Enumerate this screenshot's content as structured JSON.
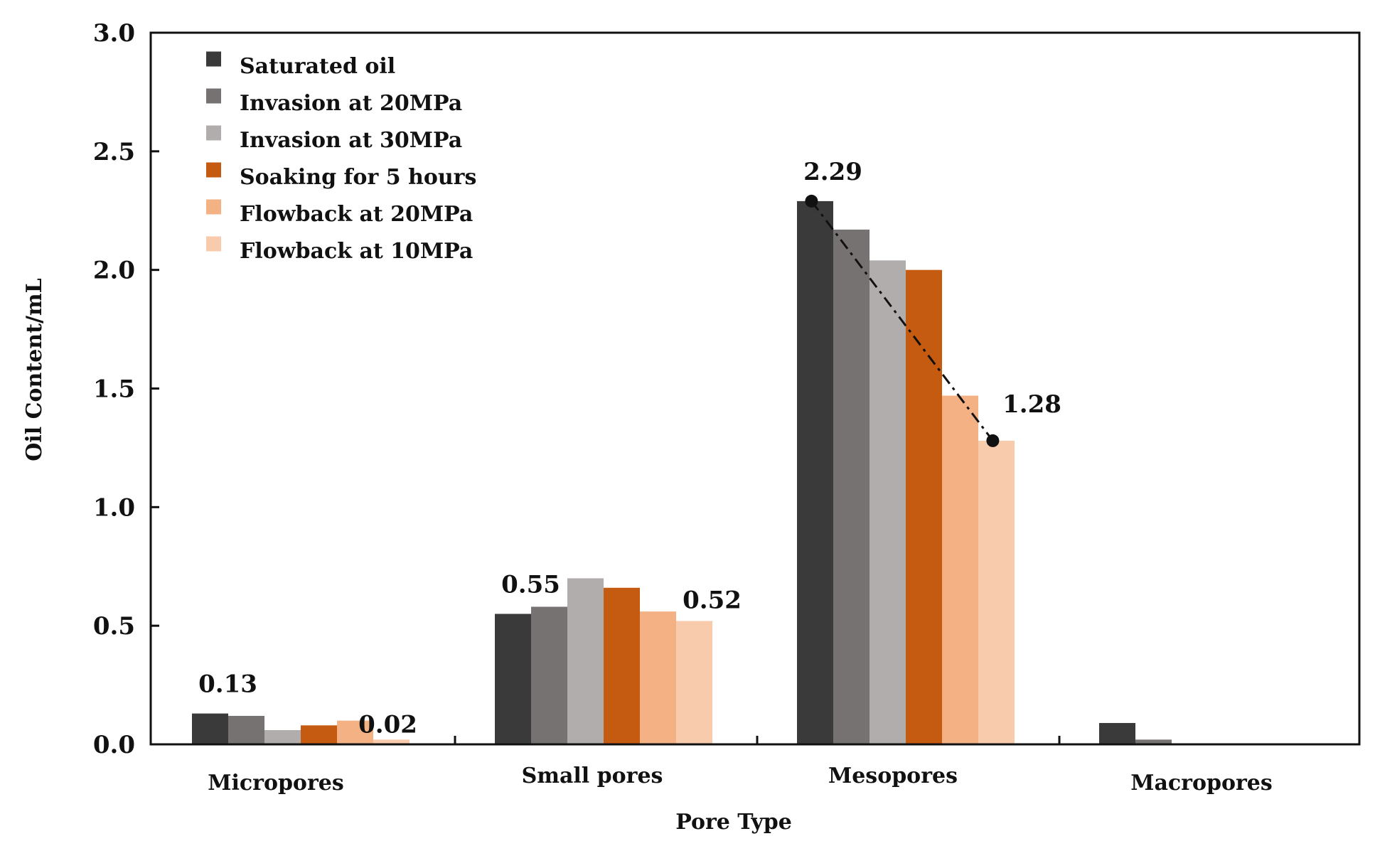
{
  "chart_data": {
    "type": "bar",
    "title": "",
    "xlabel": "Pore Type",
    "ylabel": "Oil Content/mL",
    "ylim": [
      0,
      3
    ],
    "yticks": [
      "0.0",
      "0.5",
      "1.0",
      "1.5",
      "2.0",
      "2.5",
      "3.0"
    ],
    "grid": false,
    "legend_position": "top-left",
    "categories": [
      "Micropores",
      "Small pores",
      "Mesopores",
      "Macropores"
    ],
    "series": [
      {
        "name": "Saturated oil",
        "color": "#3a3a3a",
        "values": [
          0.13,
          0.55,
          2.29,
          0.09
        ]
      },
      {
        "name": "Invasion at 20MPa",
        "color": "#767271",
        "values": [
          0.12,
          0.58,
          2.17,
          0.02
        ]
      },
      {
        "name": "Invasion at 30MPa",
        "color": "#b0adac",
        "values": [
          0.06,
          0.7,
          2.04,
          0.0
        ]
      },
      {
        "name": "Soaking for 5 hours",
        "color": "#c55a11",
        "values": [
          0.08,
          0.66,
          2.0,
          0.0
        ]
      },
      {
        "name": "Flowback at 20MPa",
        "color": "#f4b183",
        "values": [
          0.1,
          0.56,
          1.47,
          0.0
        ]
      },
      {
        "name": "Flowback at 10MPa",
        "color": "#f8cbad",
        "values": [
          0.02,
          0.52,
          1.28,
          0.0
        ]
      }
    ],
    "annotations": [
      {
        "text": "0.13",
        "category": 0,
        "series": 0,
        "value": 0.13
      },
      {
        "text": "0.02",
        "category": 0,
        "series": 5,
        "value": 0.02
      },
      {
        "text": "0.55",
        "category": 1,
        "series": 0,
        "value": 0.55
      },
      {
        "text": "0.52",
        "category": 1,
        "series": 5,
        "value": 0.52
      },
      {
        "text": "2.29",
        "category": 2,
        "series": 0,
        "value": 2.29
      },
      {
        "text": "1.28",
        "category": 2,
        "series": 5,
        "value": 1.28
      }
    ],
    "trend_line": {
      "category": 2,
      "from_series": 0,
      "to_series": 5,
      "from_value": 2.29,
      "to_value": 1.28,
      "style": "dash-dot"
    }
  }
}
